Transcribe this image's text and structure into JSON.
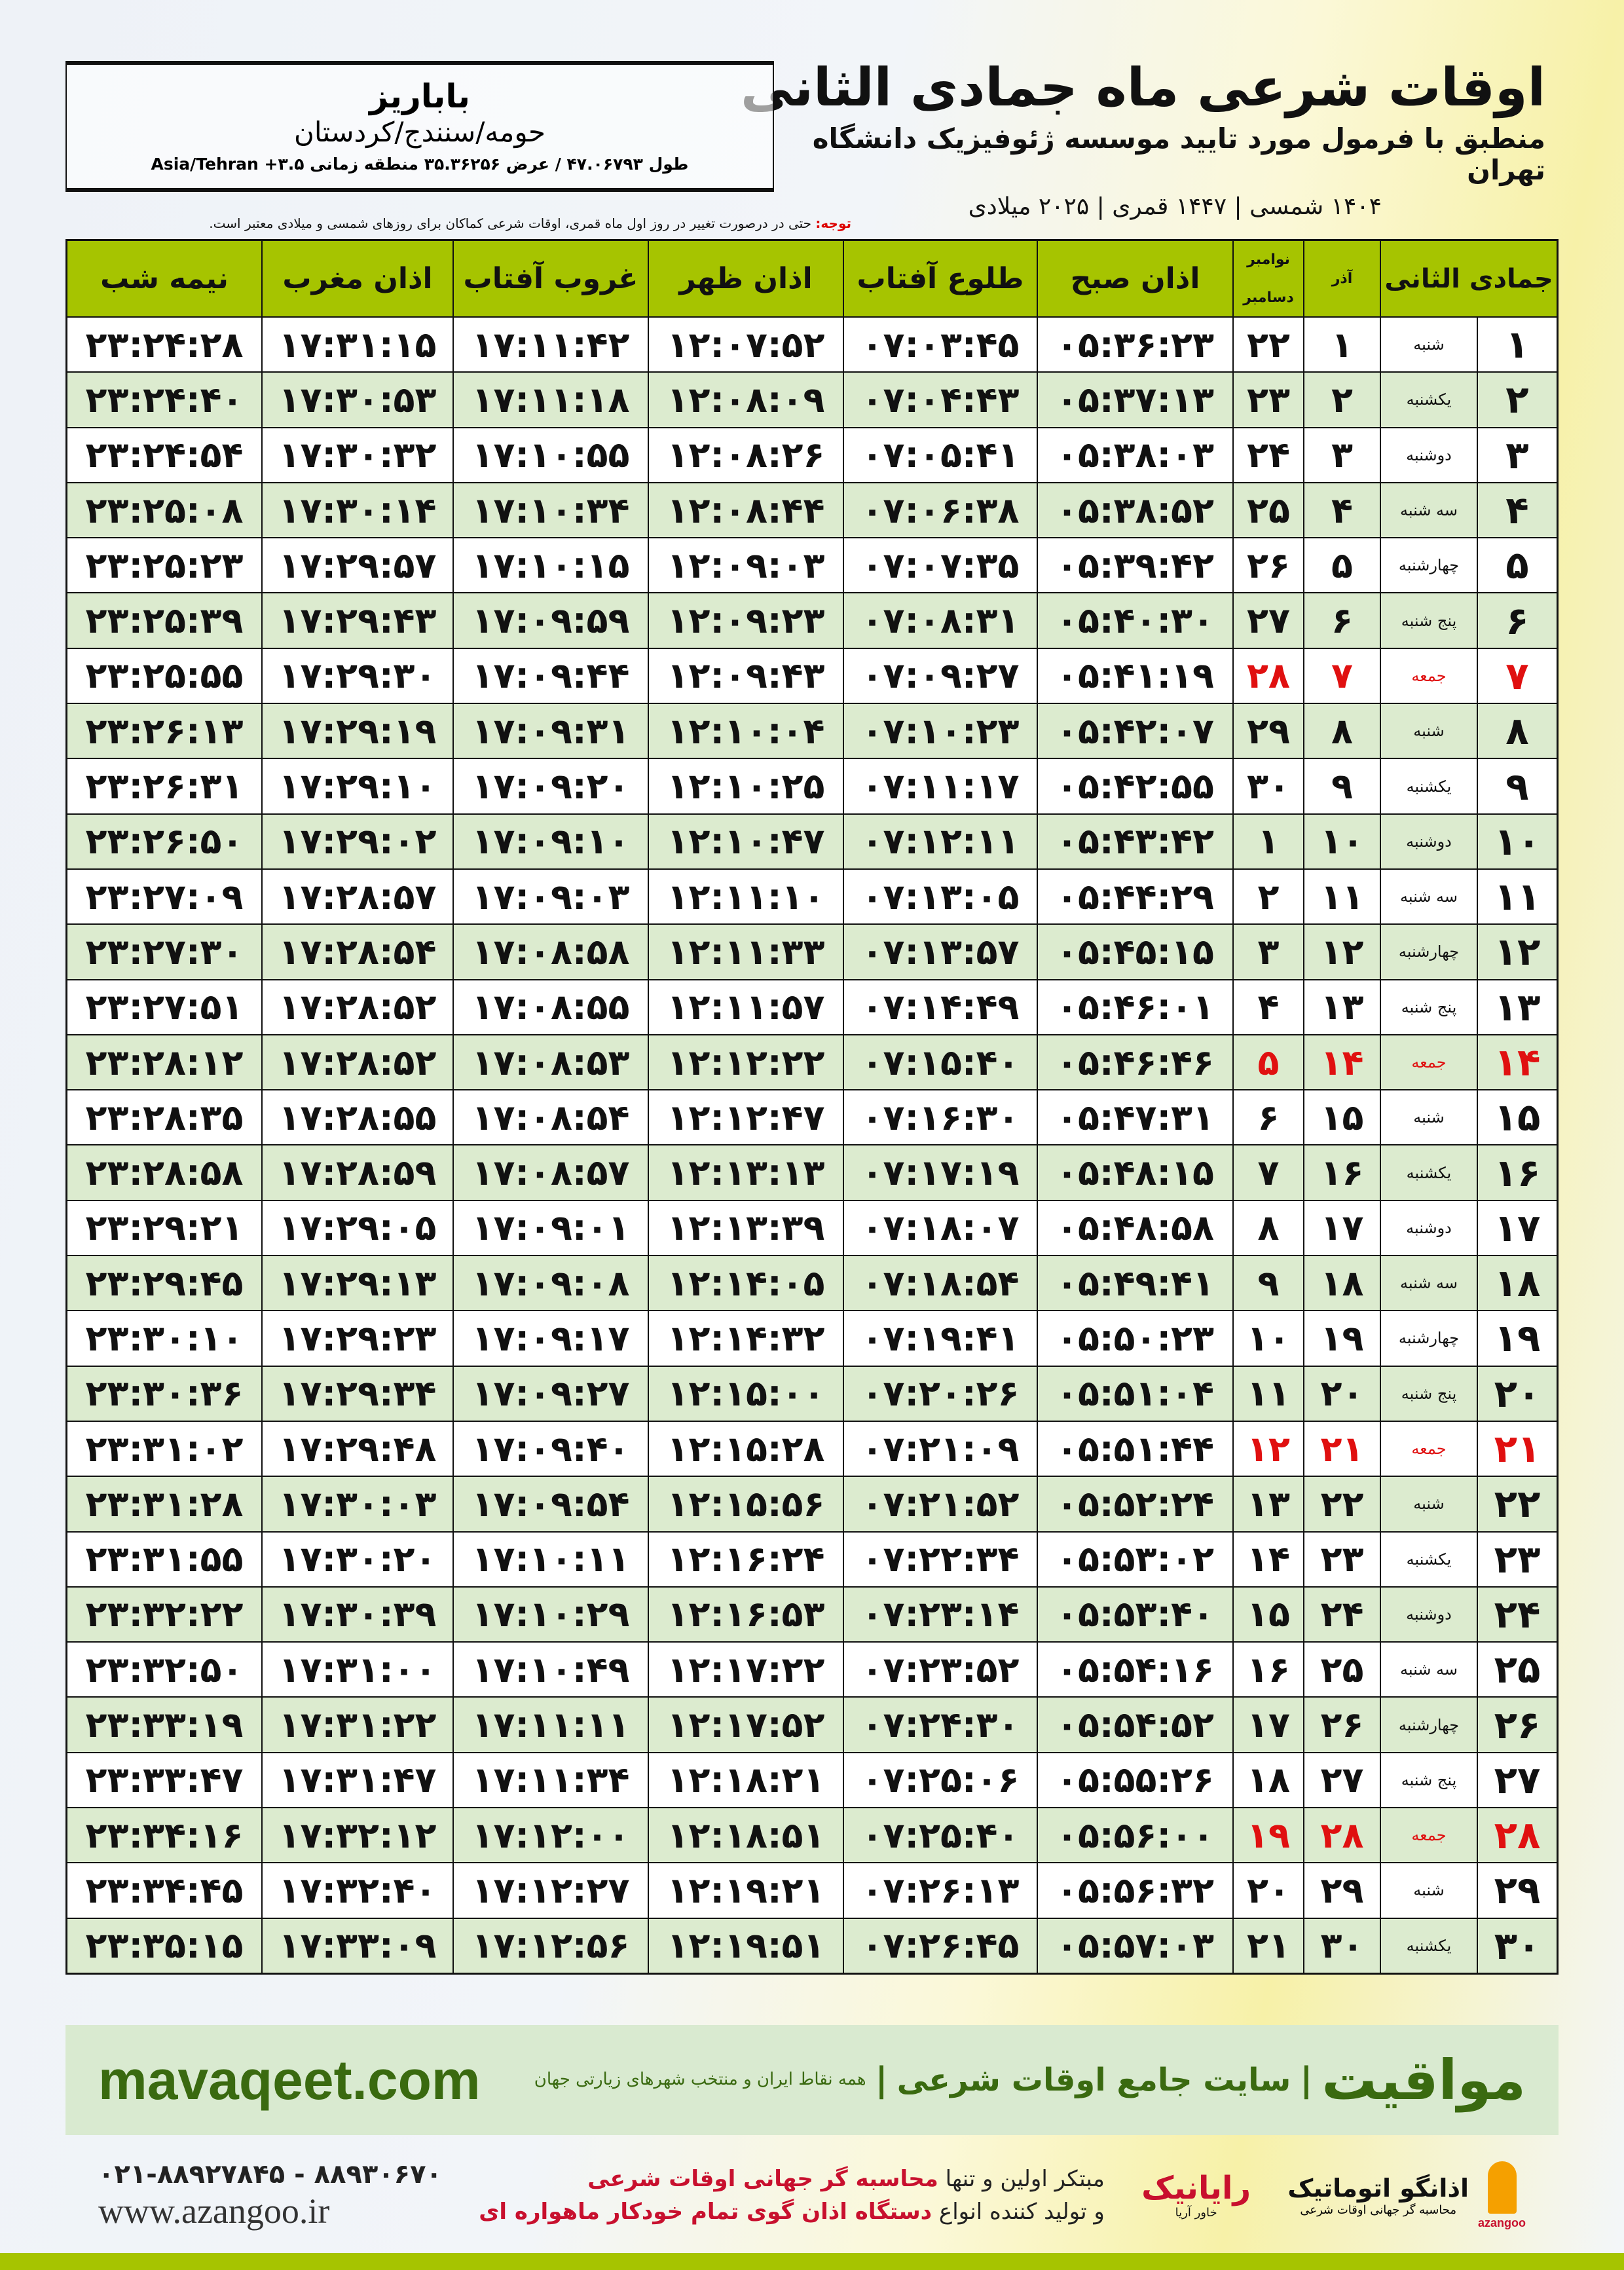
{
  "header": {
    "title": "اوقات شرعی ماه جمادی الثانی",
    "subtitle": "منطبق با فرمول مورد تایید موسسه ژئوفیزیک دانشگاه تهران",
    "years": "۱۴۰۴ شمسی | ۱۴۴۷ قمری | ۲۰۲۵ میلادی"
  },
  "location": {
    "name": "باباریز",
    "path": "حومه/سنندج/کردستان",
    "coords": "طول ۴۷.۰۶۷۹۳ / عرض ۳۵.۳۶۲۵۶ منطقه زمانی ۳.۵+ Asia/Tehran"
  },
  "note": {
    "label": "توجه:",
    "text": " حتی در درصورت تغییر در روز اول ماه قمری، اوقات شرعی کماکان برای روزهای شمسی و میلادی معتبر است."
  },
  "colors": {
    "header_green": "#a6c400",
    "row_alt": "#dcebcf",
    "friday_red": "#e01010",
    "brand_green": "#3a6a10"
  },
  "table": {
    "headers": {
      "day": "جمادی الثانی",
      "azar": "آذر",
      "nov": "نوامبر",
      "dec": "دسامبر",
      "fajr": "اذان صبح",
      "sunrise": "طلوع آفتاب",
      "dhuhr": "اذان ظهر",
      "sunset": "غروب آفتاب",
      "maghrib": "اذان مغرب",
      "midnight": "نیمه شب"
    },
    "columns": [
      "day",
      "weekday",
      "azar",
      "gregorian",
      "fajr",
      "sunrise",
      "dhuhr",
      "sunset",
      "maghrib",
      "midnight"
    ],
    "rows": [
      [
        "۱",
        "شنبه",
        "۱",
        "۲۲",
        "۰۵:۳۶:۲۳",
        "۰۷:۰۳:۴۵",
        "۱۲:۰۷:۵۲",
        "۱۷:۱۱:۴۲",
        "۱۷:۳۱:۱۵",
        "۲۳:۲۴:۲۸"
      ],
      [
        "۲",
        "یکشنبه",
        "۲",
        "۲۳",
        "۰۵:۳۷:۱۳",
        "۰۷:۰۴:۴۳",
        "۱۲:۰۸:۰۹",
        "۱۷:۱۱:۱۸",
        "۱۷:۳۰:۵۳",
        "۲۳:۲۴:۴۰"
      ],
      [
        "۳",
        "دوشنبه",
        "۳",
        "۲۴",
        "۰۵:۳۸:۰۳",
        "۰۷:۰۵:۴۱",
        "۱۲:۰۸:۲۶",
        "۱۷:۱۰:۵۵",
        "۱۷:۳۰:۳۲",
        "۲۳:۲۴:۵۴"
      ],
      [
        "۴",
        "سه شنبه",
        "۴",
        "۲۵",
        "۰۵:۳۸:۵۲",
        "۰۷:۰۶:۳۸",
        "۱۲:۰۸:۴۴",
        "۱۷:۱۰:۳۴",
        "۱۷:۳۰:۱۴",
        "۲۳:۲۵:۰۸"
      ],
      [
        "۵",
        "چهارشنبه",
        "۵",
        "۲۶",
        "۰۵:۳۹:۴۲",
        "۰۷:۰۷:۳۵",
        "۱۲:۰۹:۰۳",
        "۱۷:۱۰:۱۵",
        "۱۷:۲۹:۵۷",
        "۲۳:۲۵:۲۳"
      ],
      [
        "۶",
        "پنج شنبه",
        "۶",
        "۲۷",
        "۰۵:۴۰:۳۰",
        "۰۷:۰۸:۳۱",
        "۱۲:۰۹:۲۳",
        "۱۷:۰۹:۵۹",
        "۱۷:۲۹:۴۳",
        "۲۳:۲۵:۳۹"
      ],
      [
        "۷",
        "جمعه",
        "۷",
        "۲۸",
        "۰۵:۴۱:۱۹",
        "۰۷:۰۹:۲۷",
        "۱۲:۰۹:۴۳",
        "۱۷:۰۹:۴۴",
        "۱۷:۲۹:۳۰",
        "۲۳:۲۵:۵۵"
      ],
      [
        "۸",
        "شنبه",
        "۸",
        "۲۹",
        "۰۵:۴۲:۰۷",
        "۰۷:۱۰:۲۳",
        "۱۲:۱۰:۰۴",
        "۱۷:۰۹:۳۱",
        "۱۷:۲۹:۱۹",
        "۲۳:۲۶:۱۳"
      ],
      [
        "۹",
        "یکشنبه",
        "۹",
        "۳۰",
        "۰۵:۴۲:۵۵",
        "۰۷:۱۱:۱۷",
        "۱۲:۱۰:۲۵",
        "۱۷:۰۹:۲۰",
        "۱۷:۲۹:۱۰",
        "۲۳:۲۶:۳۱"
      ],
      [
        "۱۰",
        "دوشنبه",
        "۱۰",
        "۱",
        "۰۵:۴۳:۴۲",
        "۰۷:۱۲:۱۱",
        "۱۲:۱۰:۴۷",
        "۱۷:۰۹:۱۰",
        "۱۷:۲۹:۰۲",
        "۲۳:۲۶:۵۰"
      ],
      [
        "۱۱",
        "سه شنبه",
        "۱۱",
        "۲",
        "۰۵:۴۴:۲۹",
        "۰۷:۱۳:۰۵",
        "۱۲:۱۱:۱۰",
        "۱۷:۰۹:۰۳",
        "۱۷:۲۸:۵۷",
        "۲۳:۲۷:۰۹"
      ],
      [
        "۱۲",
        "چهارشنبه",
        "۱۲",
        "۳",
        "۰۵:۴۵:۱۵",
        "۰۷:۱۳:۵۷",
        "۱۲:۱۱:۳۳",
        "۱۷:۰۸:۵۸",
        "۱۷:۲۸:۵۴",
        "۲۳:۲۷:۳۰"
      ],
      [
        "۱۳",
        "پنج شنبه",
        "۱۳",
        "۴",
        "۰۵:۴۶:۰۱",
        "۰۷:۱۴:۴۹",
        "۱۲:۱۱:۵۷",
        "۱۷:۰۸:۵۵",
        "۱۷:۲۸:۵۲",
        "۲۳:۲۷:۵۱"
      ],
      [
        "۱۴",
        "جمعه",
        "۱۴",
        "۵",
        "۰۵:۴۶:۴۶",
        "۰۷:۱۵:۴۰",
        "۱۲:۱۲:۲۲",
        "۱۷:۰۸:۵۳",
        "۱۷:۲۸:۵۲",
        "۲۳:۲۸:۱۲"
      ],
      [
        "۱۵",
        "شنبه",
        "۱۵",
        "۶",
        "۰۵:۴۷:۳۱",
        "۰۷:۱۶:۳۰",
        "۱۲:۱۲:۴۷",
        "۱۷:۰۸:۵۴",
        "۱۷:۲۸:۵۵",
        "۲۳:۲۸:۳۵"
      ],
      [
        "۱۶",
        "یکشنبه",
        "۱۶",
        "۷",
        "۰۵:۴۸:۱۵",
        "۰۷:۱۷:۱۹",
        "۱۲:۱۳:۱۳",
        "۱۷:۰۸:۵۷",
        "۱۷:۲۸:۵۹",
        "۲۳:۲۸:۵۸"
      ],
      [
        "۱۷",
        "دوشنبه",
        "۱۷",
        "۸",
        "۰۵:۴۸:۵۸",
        "۰۷:۱۸:۰۷",
        "۱۲:۱۳:۳۹",
        "۱۷:۰۹:۰۱",
        "۱۷:۲۹:۰۵",
        "۲۳:۲۹:۲۱"
      ],
      [
        "۱۸",
        "سه شنبه",
        "۱۸",
        "۹",
        "۰۵:۴۹:۴۱",
        "۰۷:۱۸:۵۴",
        "۱۲:۱۴:۰۵",
        "۱۷:۰۹:۰۸",
        "۱۷:۲۹:۱۳",
        "۲۳:۲۹:۴۵"
      ],
      [
        "۱۹",
        "چهارشنبه",
        "۱۹",
        "۱۰",
        "۰۵:۵۰:۲۳",
        "۰۷:۱۹:۴۱",
        "۱۲:۱۴:۳۲",
        "۱۷:۰۹:۱۷",
        "۱۷:۲۹:۲۳",
        "۲۳:۳۰:۱۰"
      ],
      [
        "۲۰",
        "پنج شنبه",
        "۲۰",
        "۱۱",
        "۰۵:۵۱:۰۴",
        "۰۷:۲۰:۲۶",
        "۱۲:۱۵:۰۰",
        "۱۷:۰۹:۲۷",
        "۱۷:۲۹:۳۴",
        "۲۳:۳۰:۳۶"
      ],
      [
        "۲۱",
        "جمعه",
        "۲۱",
        "۱۲",
        "۰۵:۵۱:۴۴",
        "۰۷:۲۱:۰۹",
        "۱۲:۱۵:۲۸",
        "۱۷:۰۹:۴۰",
        "۱۷:۲۹:۴۸",
        "۲۳:۳۱:۰۲"
      ],
      [
        "۲۲",
        "شنبه",
        "۲۲",
        "۱۳",
        "۰۵:۵۲:۲۴",
        "۰۷:۲۱:۵۲",
        "۱۲:۱۵:۵۶",
        "۱۷:۰۹:۵۴",
        "۱۷:۳۰:۰۳",
        "۲۳:۳۱:۲۸"
      ],
      [
        "۲۳",
        "یکشنبه",
        "۲۳",
        "۱۴",
        "۰۵:۵۳:۰۲",
        "۰۷:۲۲:۳۴",
        "۱۲:۱۶:۲۴",
        "۱۷:۱۰:۱۱",
        "۱۷:۳۰:۲۰",
        "۲۳:۳۱:۵۵"
      ],
      [
        "۲۴",
        "دوشنبه",
        "۲۴",
        "۱۵",
        "۰۵:۵۳:۴۰",
        "۰۷:۲۳:۱۴",
        "۱۲:۱۶:۵۳",
        "۱۷:۱۰:۲۹",
        "۱۷:۳۰:۳۹",
        "۲۳:۳۲:۲۲"
      ],
      [
        "۲۵",
        "سه شنبه",
        "۲۵",
        "۱۶",
        "۰۵:۵۴:۱۶",
        "۰۷:۲۳:۵۲",
        "۱۲:۱۷:۲۲",
        "۱۷:۱۰:۴۹",
        "۱۷:۳۱:۰۰",
        "۲۳:۳۲:۵۰"
      ],
      [
        "۲۶",
        "چهارشنبه",
        "۲۶",
        "۱۷",
        "۰۵:۵۴:۵۲",
        "۰۷:۲۴:۳۰",
        "۱۲:۱۷:۵۲",
        "۱۷:۱۱:۱۱",
        "۱۷:۳۱:۲۲",
        "۲۳:۳۳:۱۹"
      ],
      [
        "۲۷",
        "پنج شنبه",
        "۲۷",
        "۱۸",
        "۰۵:۵۵:۲۶",
        "۰۷:۲۵:۰۶",
        "۱۲:۱۸:۲۱",
        "۱۷:۱۱:۳۴",
        "۱۷:۳۱:۴۷",
        "۲۳:۳۳:۴۷"
      ],
      [
        "۲۸",
        "جمعه",
        "۲۸",
        "۱۹",
        "۰۵:۵۶:۰۰",
        "۰۷:۲۵:۴۰",
        "۱۲:۱۸:۵۱",
        "۱۷:۱۲:۰۰",
        "۱۷:۳۲:۱۲",
        "۲۳:۳۴:۱۶"
      ],
      [
        "۲۹",
        "شنبه",
        "۲۹",
        "۲۰",
        "۰۵:۵۶:۳۲",
        "۰۷:۲۶:۱۳",
        "۱۲:۱۹:۲۱",
        "۱۷:۱۲:۲۷",
        "۱۷:۳۲:۴۰",
        "۲۳:۳۴:۴۵"
      ],
      [
        "۳۰",
        "یکشنبه",
        "۳۰",
        "۲۱",
        "۰۵:۵۷:۰۳",
        "۰۷:۲۶:۴۵",
        "۱۲:۱۹:۵۱",
        "۱۷:۱۲:۵۶",
        "۱۷:۳۳:۰۹",
        "۲۳:۳۵:۱۵"
      ]
    ]
  },
  "footer": {
    "brand": "مواقیت",
    "sep": "|",
    "tagline": "سایت جامع اوقات شرعی",
    "sub": "همه نقاط ایران و منتخب شهرهای زیارتی جهان",
    "url": "mavaqeet.com",
    "phone": "۰۲۱-۸۸۹۲۷۸۴۵ - ۸۸۹۳۰۶۷۰",
    "website": "www.azangoo.ir",
    "promo1_a": "مبتکر اولین و تنها ",
    "promo1_b": "محاسبه گر جهانی اوقات شرعی",
    "promo2_a": "و تولید کننده انواع ",
    "promo2_b": "دستگاه اذان گوی تمام خودکار ماهواره ای",
    "logo_rayanik": "رایانیک",
    "logo_rayanik_sub": "خاور آریا",
    "logo_azangoo": "اذانگو اتوماتیک",
    "logo_azangoo_sub": "محاسبه گر جهانی اوقات شرعی",
    "logo_azangoo_en": "azangoo"
  }
}
